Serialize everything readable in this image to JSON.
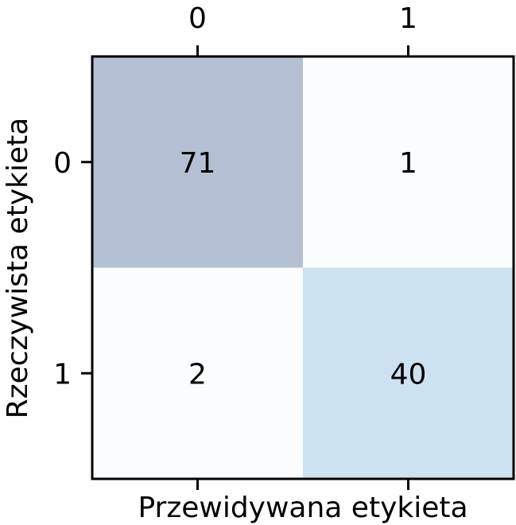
{
  "chart_data": {
    "type": "heatmap",
    "title": "",
    "xlabel": "Przewidywana etykieta",
    "ylabel": "Rzeczywista etykieta",
    "x_categories": [
      "0",
      "1"
    ],
    "y_categories": [
      "0",
      "1"
    ],
    "x_tick_position": "top-and-bottom",
    "x_tick_labels_position": "top",
    "grid": false,
    "legend": "none",
    "values": [
      [
        71,
        1
      ],
      [
        2,
        40
      ]
    ],
    "cell_colors": [
      [
        "#b3c0d4",
        "#fafcfe"
      ],
      [
        "#fafcfe",
        "#cde2f0"
      ]
    ]
  }
}
